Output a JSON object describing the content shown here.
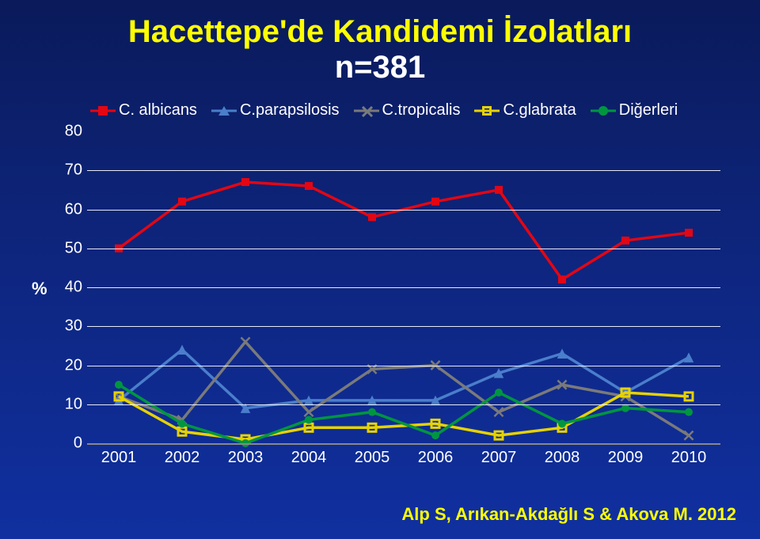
{
  "title": {
    "line1": "Hacettepe'de Kandidemi İzolatları",
    "line2": "n=381",
    "color": "#ffff00",
    "fontsize": 40
  },
  "chart": {
    "type": "line",
    "background_color_gradient": [
      "#0a1a5a",
      "#0e2680",
      "#1030a0"
    ],
    "ylabel": "%",
    "ylabel_fontsize": 22,
    "ylim": [
      0,
      80
    ],
    "ytick_step": 10,
    "yticks": [
      0,
      10,
      20,
      30,
      40,
      50,
      60,
      70,
      80
    ],
    "ytick_fontsize": 20,
    "ytick_color": "#ffffff",
    "xcategories": [
      "2001",
      "2002",
      "2003",
      "2004",
      "2005",
      "2006",
      "2007",
      "2008",
      "2009",
      "2010"
    ],
    "xtick_fontsize": 20,
    "xtick_color": "#ffffff",
    "grid_color": "#ffffff",
    "baseline_color": "#888888",
    "line_width": 3.5,
    "marker_size": 10,
    "series": [
      {
        "name": "C. albicans",
        "label": "C. albicans",
        "color": "#e30613",
        "marker": "square",
        "values": [
          50,
          62,
          67,
          66,
          58,
          62,
          65,
          42,
          52,
          54
        ]
      },
      {
        "name": "C.parapsilosis",
        "label": "C.parapsilosis",
        "color": "#4a7ecb",
        "marker": "triangle",
        "values": [
          11,
          24,
          9,
          11,
          11,
          11,
          18,
          23,
          13,
          22
        ]
      },
      {
        "name": "C.tropicalis",
        "label": "C.tropicalis",
        "color": "#7a7a7a",
        "marker": "x",
        "values": [
          12,
          6,
          26,
          8,
          19,
          20,
          8,
          15,
          12,
          2
        ]
      },
      {
        "name": "C.glabrata",
        "label": "C.glabrata",
        "color": "#e6d200",
        "marker": "square-hollow",
        "values": [
          12,
          3,
          1,
          4,
          4,
          5,
          2,
          4,
          13,
          12
        ]
      },
      {
        "name": "Diğerleri",
        "label": "Diğerleri",
        "color": "#009640",
        "marker": "circle",
        "values": [
          15,
          5,
          0,
          6,
          8,
          2,
          13,
          5,
          9,
          8
        ]
      }
    ]
  },
  "citation": {
    "text": "Alp S, Arıkan-Akdağlı S & Akova M. 2012",
    "color": "#ffff00",
    "fontsize": 22
  }
}
